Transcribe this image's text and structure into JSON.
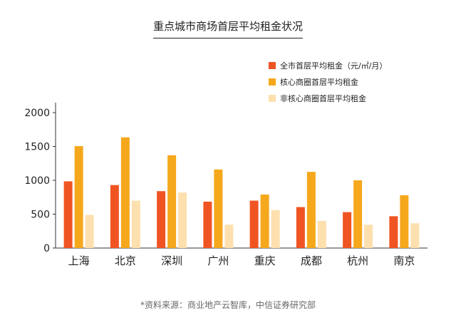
{
  "colors": {
    "series": [
      "#f05423",
      "#f5a81c",
      "#fde0ae"
    ],
    "axis": "#333333",
    "text": "#222222",
    "source": "#666666"
  },
  "chart_data": {
    "type": "bar",
    "title": "重点城市商场首层平均租金状况",
    "categories": [
      "上海",
      "北京",
      "深圳",
      "广州",
      "重庆",
      "成都",
      "杭州",
      "南京"
    ],
    "series": [
      {
        "name": "全市首层平均租金（元/㎡/月）",
        "values": [
          985,
          930,
          840,
          685,
          700,
          605,
          530,
          470
        ]
      },
      {
        "name": "核心商圈首层平均租金",
        "values": [
          1505,
          1635,
          1370,
          1160,
          790,
          1125,
          1000,
          780
        ]
      },
      {
        "name": "非核心商圈首层平均租金",
        "values": [
          490,
          700,
          820,
          345,
          560,
          400,
          345,
          365
        ]
      }
    ],
    "xlabel": "",
    "ylabel": "",
    "ylim": [
      0,
      2000
    ],
    "yticks": [
      0,
      500,
      1000,
      1500,
      2000
    ],
    "grid": false,
    "legend_position": "top-right"
  },
  "source_note": "*资料来源：商业地产云智库，中信证券研究部"
}
